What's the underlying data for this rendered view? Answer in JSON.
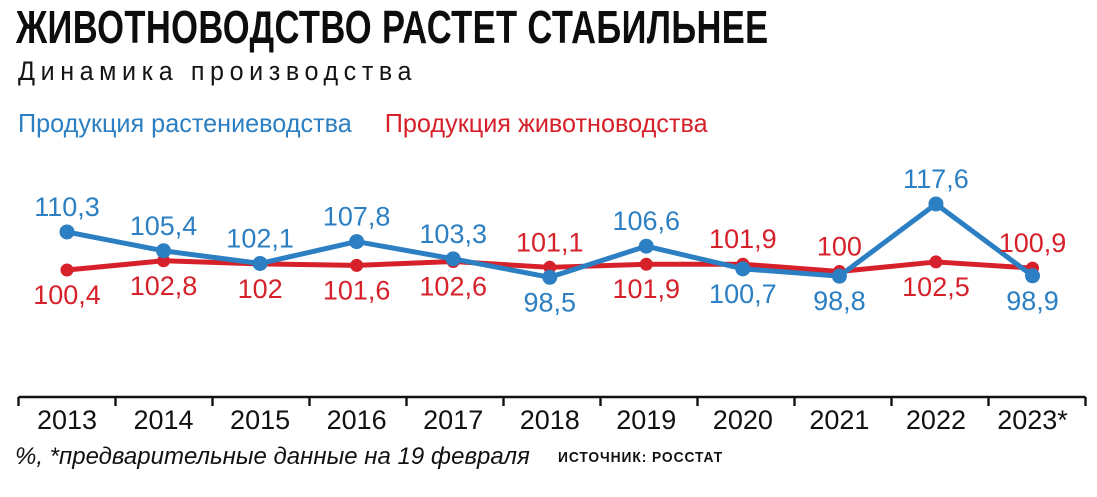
{
  "header": {
    "title": "ЖИВОТНОВОДСТВО РАСТЕТ СТАБИЛЬНЕЕ",
    "subtitle": "Динамика производства"
  },
  "legend": {
    "items": [
      {
        "id": "crop-production",
        "label": "Продукция растениеводства",
        "color": "#2b7fc2"
      },
      {
        "id": "livestock-production",
        "label": "Продукция животноводства",
        "color": "#d6212a"
      }
    ]
  },
  "chart_data": {
    "type": "line",
    "title": "Динамика производства",
    "categories": [
      "2013",
      "2014",
      "2015",
      "2016",
      "2017",
      "2018",
      "2019",
      "2020",
      "2021",
      "2022",
      "2023*"
    ],
    "series": [
      {
        "id": "crop-production",
        "name": "Продукция растениеводства",
        "color": "#2b7fc2",
        "values": [
          110.3,
          105.4,
          102.1,
          107.8,
          103.3,
          98.5,
          106.6,
          100.7,
          98.8,
          117.6,
          98.9
        ]
      },
      {
        "id": "livestock-production",
        "name": "Продукция животноводства",
        "color": "#d6212a",
        "values": [
          100.4,
          102.8,
          102,
          101.6,
          102.6,
          101.1,
          101.9,
          101.9,
          100,
          102.5,
          100.9
        ]
      }
    ],
    "ylabel": "%",
    "decimal_separator": ",",
    "grid": false,
    "legend_position": "top",
    "axis_color": "#111111",
    "label_color": "#111111"
  },
  "footer": {
    "note": "%,  *предварительные данные на 19 февраля",
    "source": "ИСТОЧНИК: РОССТАТ"
  }
}
